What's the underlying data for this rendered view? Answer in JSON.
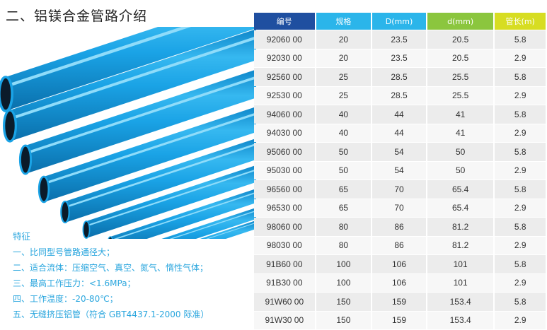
{
  "title": "二、铝镁合金管路介绍",
  "table": {
    "headers": [
      {
        "label": "编号",
        "color": "#1f4fa0"
      },
      {
        "label": "规格",
        "color": "#2bb5ea"
      },
      {
        "label": "D(mm)",
        "color": "#2bb5ea"
      },
      {
        "label": "d(mm)",
        "color": "#8bc63e"
      },
      {
        "label": "管长(m)",
        "color": "#d7dd22"
      }
    ],
    "rows": [
      [
        "92060 00",
        "20",
        "23.5",
        "20.5",
        "5.8"
      ],
      [
        "92030 00",
        "20",
        "23.5",
        "20.5",
        "2.9"
      ],
      [
        "92560 00",
        "25",
        "28.5",
        "25.5",
        "5.8"
      ],
      [
        "92530 00",
        "25",
        "28.5",
        "25.5",
        "2.9"
      ],
      [
        "94060 00",
        "40",
        "44",
        "41",
        "5.8"
      ],
      [
        "94030 00",
        "40",
        "44",
        "41",
        "2.9"
      ],
      [
        "95060 00",
        "50",
        "54",
        "50",
        "5.8"
      ],
      [
        "95030 00",
        "50",
        "54",
        "50",
        "2.9"
      ],
      [
        "96560 00",
        "65",
        "70",
        "65.4",
        "5.8"
      ],
      [
        "96530 00",
        "65",
        "70",
        "65.4",
        "2.9"
      ],
      [
        "98060 00",
        "80",
        "86",
        "81.2",
        "5.8"
      ],
      [
        "98030 00",
        "80",
        "86",
        "81.2",
        "2.9"
      ],
      [
        "91B60 00",
        "100",
        "106",
        "101",
        "5.8"
      ],
      [
        "91B30 00",
        "100",
        "106",
        "101",
        "2.9"
      ],
      [
        "91W60 00",
        "150",
        "159",
        "153.4",
        "5.8"
      ],
      [
        "91W30 00",
        "150",
        "159",
        "153.4",
        "2.9"
      ]
    ]
  },
  "features": {
    "title": "特征",
    "items": [
      "一、比同型号管路通径大；",
      "二、适合流体：压缩空气、真空、氮气、惰性气体；",
      "三、最高工作压力：<1.6MPa；",
      "四、工作温度：-20-80℃；",
      "五、无缝挤压铝管（符合 GBT4437.1-2000 际准）"
    ]
  },
  "colors": {
    "pipe": "#1aa3e6",
    "pipe_highlight": "#7fd4f7",
    "feature_text": "#2aa6de"
  }
}
